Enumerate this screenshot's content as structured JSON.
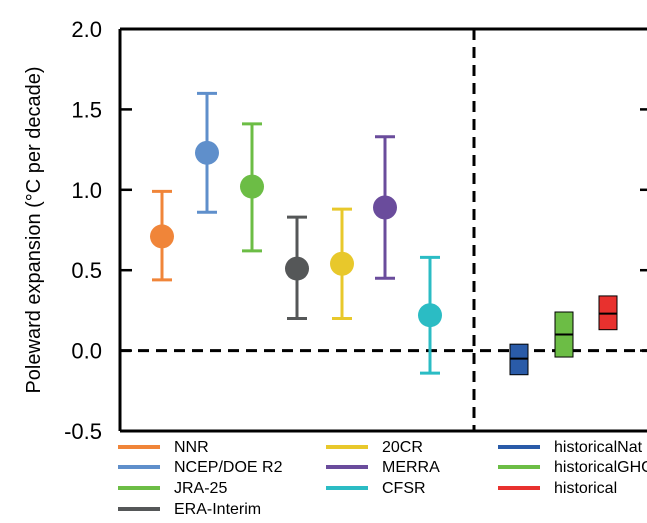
{
  "chart_data": {
    "type": "scatter",
    "title": "",
    "xlabel": "",
    "ylabel": "Poleward expansion (°C per decade)",
    "ylim": [
      -0.5,
      2.0
    ],
    "yticks": [
      "2.0",
      "1.5",
      "1.0",
      "0.5",
      "0.0",
      "-0.5"
    ],
    "grid": false,
    "zero_line": true,
    "legend_position": "bottom",
    "reanalyses": [
      {
        "name": "NNR",
        "value": 0.71,
        "low": 0.44,
        "high": 0.99,
        "color": "#f08539"
      },
      {
        "name": "NCEP/DOE R2",
        "value": 1.23,
        "low": 0.86,
        "high": 1.6,
        "color": "#5f8fcb"
      },
      {
        "name": "JRA-25",
        "value": 1.02,
        "low": 0.62,
        "high": 1.41,
        "color": "#6cbd45"
      },
      {
        "name": "ERA-Interim",
        "value": 0.51,
        "low": 0.2,
        "high": 0.83,
        "color": "#555758"
      },
      {
        "name": "20CR",
        "value": 0.54,
        "low": 0.2,
        "high": 0.88,
        "color": "#e8c82b"
      },
      {
        "name": "MERRA",
        "value": 0.89,
        "low": 0.45,
        "high": 1.33,
        "color": "#6a4c9c"
      },
      {
        "name": "CFSR",
        "value": 0.22,
        "low": -0.14,
        "high": 0.58,
        "color": "#2bbcc4"
      }
    ],
    "model_ranges": [
      {
        "name": "historicalNat",
        "median": -0.05,
        "low": -0.15,
        "high": 0.04,
        "color": "#2a5ba8"
      },
      {
        "name": "historicalGHG",
        "median": 0.1,
        "low": -0.04,
        "high": 0.24,
        "color": "#6cbd45"
      },
      {
        "name": "historical",
        "median": 0.23,
        "low": 0.13,
        "high": 0.34,
        "color": "#e8312e"
      }
    ],
    "legend": {
      "columns": [
        [
          "NNR",
          "NCEP/DOE R2",
          "JRA-25",
          "ERA-Interim"
        ],
        [
          "20CR",
          "MERRA",
          "CFSR"
        ],
        [
          "historicalNat",
          "historicalGHG",
          "historical"
        ]
      ]
    }
  }
}
